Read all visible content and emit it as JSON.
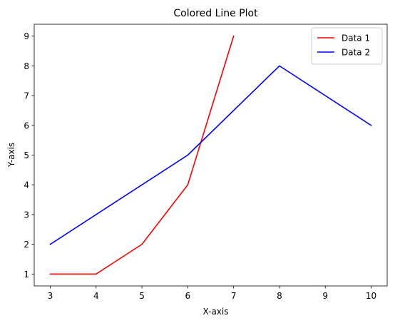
{
  "chart_data": {
    "type": "line",
    "title": "Colored Line Plot",
    "xlabel": "X-axis",
    "ylabel": "Y-axis",
    "xlim": [
      2.65,
      10.35
    ],
    "ylim": [
      0.6,
      9.4
    ],
    "xticks": [
      3,
      4,
      5,
      6,
      7,
      8,
      9,
      10
    ],
    "yticks": [
      1,
      2,
      3,
      4,
      5,
      6,
      7,
      8,
      9
    ],
    "grid": false,
    "legend_position": "top-right",
    "series": [
      {
        "name": "Data 1",
        "color": "#ff0000",
        "x": [
          3,
          4,
          5,
          6,
          7
        ],
        "y": [
          1,
          1,
          2,
          4,
          9
        ]
      },
      {
        "name": "Data 2",
        "color": "#0000ff",
        "x": [
          3,
          6,
          8,
          10
        ],
        "y": [
          2,
          5,
          8,
          6
        ]
      }
    ]
  }
}
